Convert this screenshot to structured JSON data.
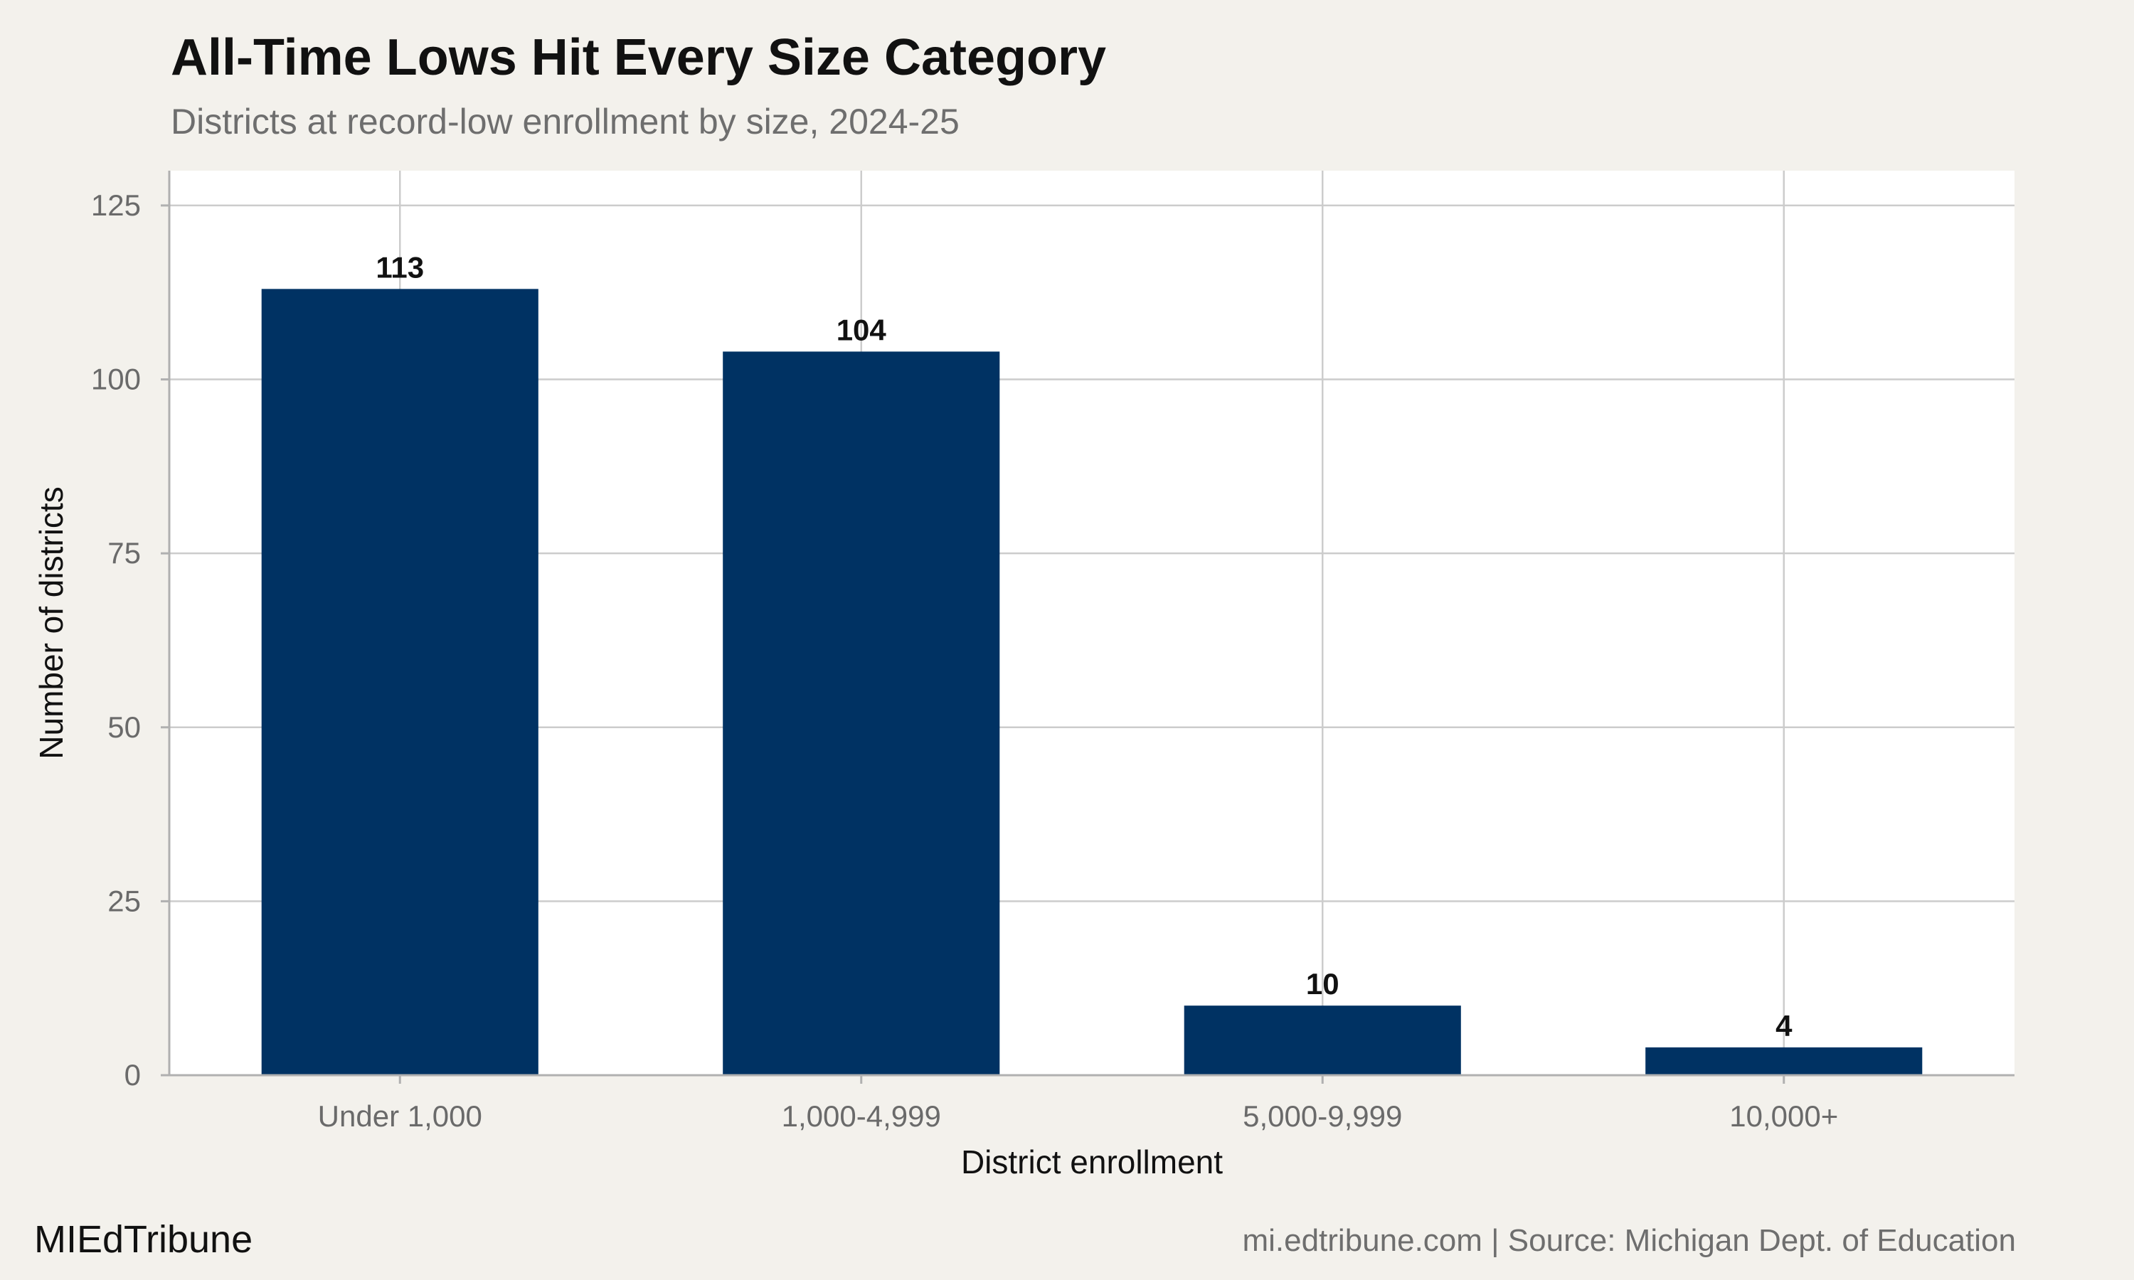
{
  "chart_data": {
    "type": "bar",
    "title": "All-Time Lows Hit Every Size Category",
    "subtitle": "Districts at record-low enrollment by size, 2024-25",
    "xlabel": "District enrollment",
    "ylabel": "Number of districts",
    "categories": [
      "Under 1,000",
      "1,000-4,999",
      "5,000-9,999",
      "10,000+"
    ],
    "values": [
      113,
      104,
      10,
      4
    ],
    "data_labels": [
      "113",
      "104",
      "10",
      "4"
    ],
    "yticks": [
      0,
      25,
      50,
      75,
      100,
      125
    ],
    "ytick_labels": [
      "0",
      "25",
      "50",
      "75",
      "100",
      "125"
    ],
    "ylim": [
      0,
      130
    ],
    "grid": true,
    "legend": "none",
    "colors": {
      "bar": "#003263",
      "plot_background": "#ffffff",
      "page_background": "#f3f1ec",
      "grid": "#cccccc"
    }
  },
  "footer": {
    "brand": "MIEdTribune",
    "source": "mi.edtribune.com | Source: Michigan Dept. of Education"
  }
}
